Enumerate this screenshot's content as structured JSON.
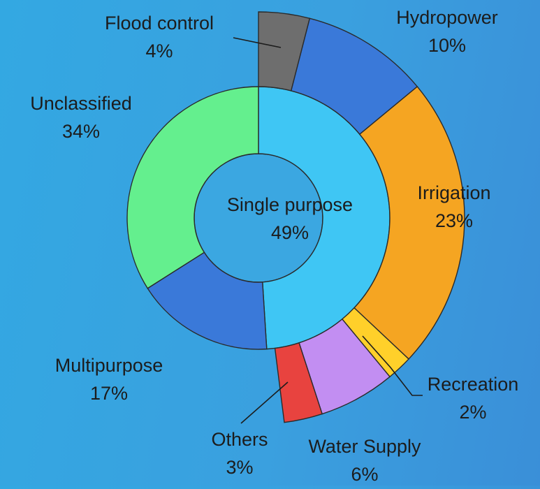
{
  "chart_data": {
    "type": "pie",
    "subtype": "sunburst",
    "center_label": {
      "name": "Single purpose",
      "value": "49%"
    },
    "inner_ring": [
      {
        "name": "Single purpose",
        "value": 49,
        "label": "",
        "color": "#3fc6f4"
      },
      {
        "name": "Multipurpose",
        "value": 17,
        "label": "17%",
        "color": "#3a79d9"
      },
      {
        "name": "Unclassified",
        "value": 34,
        "label": "34%",
        "color": "#64ef8e"
      }
    ],
    "outer_ring": [
      {
        "name": "Flood control",
        "value": 4,
        "label": "4%",
        "color": "#6e6e6e"
      },
      {
        "name": "Hydropower",
        "value": 10,
        "label": "10%",
        "color": "#3a79d9"
      },
      {
        "name": "Irrigation",
        "value": 23,
        "label": "23%",
        "color": "#f5a522"
      },
      {
        "name": "Recreation",
        "value": 2,
        "label": "2%",
        "color": "#ffd02a"
      },
      {
        "name": "Water Supply",
        "value": 6,
        "label": "6%",
        "color": "#c28ef2"
      },
      {
        "name": "Others",
        "value": 3,
        "label": "3%",
        "color": "#e8433f"
      }
    ],
    "legend": "none",
    "grid": false
  }
}
